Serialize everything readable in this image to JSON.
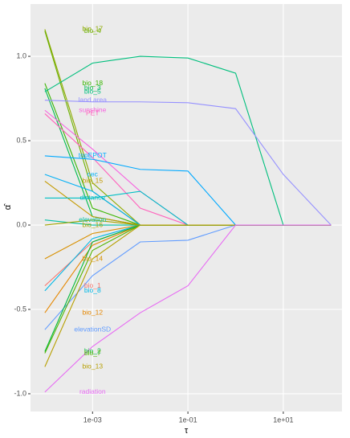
{
  "chart_data": {
    "type": "line",
    "xlabel": "τ",
    "ylabel": "α̂",
    "xscale": "log",
    "grid": true,
    "x": [
      0.0001,
      0.001,
      0.01,
      0.1,
      1,
      10,
      100
    ],
    "xlim": [
      5e-05,
      170
    ],
    "ylim": [
      -1.105,
      1.31
    ],
    "xticks": [
      {
        "value": 0.001,
        "label": "1e-03"
      },
      {
        "value": 0.1,
        "label": "1e-01"
      },
      {
        "value": 10,
        "label": "1e+01"
      }
    ],
    "yticks": [
      {
        "value": -1,
        "label": "-1.0"
      },
      {
        "value": -0.5,
        "label": "-0.5"
      },
      {
        "value": 0,
        "label": "0.0"
      },
      {
        "value": 0.5,
        "label": "0.5"
      },
      {
        "value": 1,
        "label": "1.0"
      }
    ],
    "series": [
      {
        "name": "bio_17",
        "color": "#8FAA00",
        "values": [
          1.16,
          0.25,
          0,
          0,
          0,
          0,
          0
        ]
      },
      {
        "name": "bio_4",
        "color": "#6BB100",
        "values": [
          1.15,
          0.2,
          0,
          0,
          0,
          0,
          0
        ]
      },
      {
        "name": "bio_18",
        "color": "#39B600",
        "values": [
          0.84,
          0.1,
          0,
          0,
          0,
          0,
          0
        ]
      },
      {
        "name": "bio_3",
        "color": "#00BB4E",
        "values": [
          0.81,
          0.05,
          0,
          0,
          0,
          0,
          0
        ]
      },
      {
        "name": "bio_5",
        "color": "#00BF7D",
        "values": [
          0.79,
          0.96,
          1.0,
          0.99,
          0.9,
          0,
          0
        ]
      },
      {
        "name": "land.area",
        "color": "#9590FF",
        "values": [
          0.74,
          0.73,
          0.73,
          0.725,
          0.69,
          0.3,
          0
        ]
      },
      {
        "name": "sunshine",
        "color": "#F763E0",
        "values": [
          0.68,
          0.45,
          0.2,
          0,
          0,
          0,
          0
        ]
      },
      {
        "name": "PET",
        "color": "#FF62BC",
        "values": [
          0.66,
          0.4,
          0.1,
          0,
          0,
          0,
          0
        ]
      },
      {
        "name": "topEPOT",
        "color": "#00A9FF",
        "values": [
          0.41,
          0.39,
          0.33,
          0.32,
          0,
          0,
          0
        ]
      },
      {
        "name": "cec",
        "color": "#00B0F6",
        "values": [
          0.3,
          0.2,
          0,
          0,
          0,
          0,
          0
        ]
      },
      {
        "name": "bio_15",
        "color": "#C49A00",
        "values": [
          0.26,
          0.05,
          0,
          0,
          0,
          0,
          0
        ]
      },
      {
        "name": "distance",
        "color": "#00BFC4",
        "values": [
          0.16,
          0.16,
          0.2,
          0,
          0,
          0,
          0
        ]
      },
      {
        "name": "elevation",
        "color": "#00C1A3",
        "values": [
          0.03,
          0.0,
          0,
          0,
          0,
          0,
          0
        ]
      },
      {
        "name": "bio_16",
        "color": "#A3A500",
        "values": [
          0.0,
          0.03,
          0,
          0,
          0,
          0,
          0
        ]
      },
      {
        "name": "bio_14",
        "color": "#D89000",
        "values": [
          -0.2,
          -0.05,
          0,
          0,
          0,
          0,
          0
        ]
      },
      {
        "name": "bio_1",
        "color": "#F8766D",
        "values": [
          -0.36,
          -0.1,
          0,
          0,
          0,
          0,
          0
        ]
      },
      {
        "name": "bio_8",
        "color": "#00B8E7",
        "values": [
          -0.39,
          -0.08,
          0,
          0,
          0,
          0,
          0
        ]
      },
      {
        "name": "bio_12",
        "color": "#E58700",
        "values": [
          -0.52,
          -0.12,
          0,
          0,
          0,
          0,
          0
        ]
      },
      {
        "name": "elevationSD",
        "color": "#619CFF",
        "values": [
          -0.62,
          -0.3,
          -0.1,
          -0.09,
          0,
          0,
          0
        ]
      },
      {
        "name": "bio_2",
        "color": "#00BA38",
        "values": [
          -0.75,
          -0.1,
          0,
          0,
          0,
          0,
          0
        ]
      },
      {
        "name": "bio_7",
        "color": "#53B400",
        "values": [
          -0.76,
          -0.15,
          0,
          0,
          0,
          0,
          0
        ]
      },
      {
        "name": "bio_13",
        "color": "#B79F00",
        "values": [
          -0.84,
          -0.2,
          0,
          0,
          0,
          0,
          0
        ]
      },
      {
        "name": "radiation",
        "color": "#E76BF3",
        "values": [
          -0.99,
          -0.72,
          -0.52,
          -0.36,
          0,
          0,
          0
        ]
      }
    ]
  }
}
